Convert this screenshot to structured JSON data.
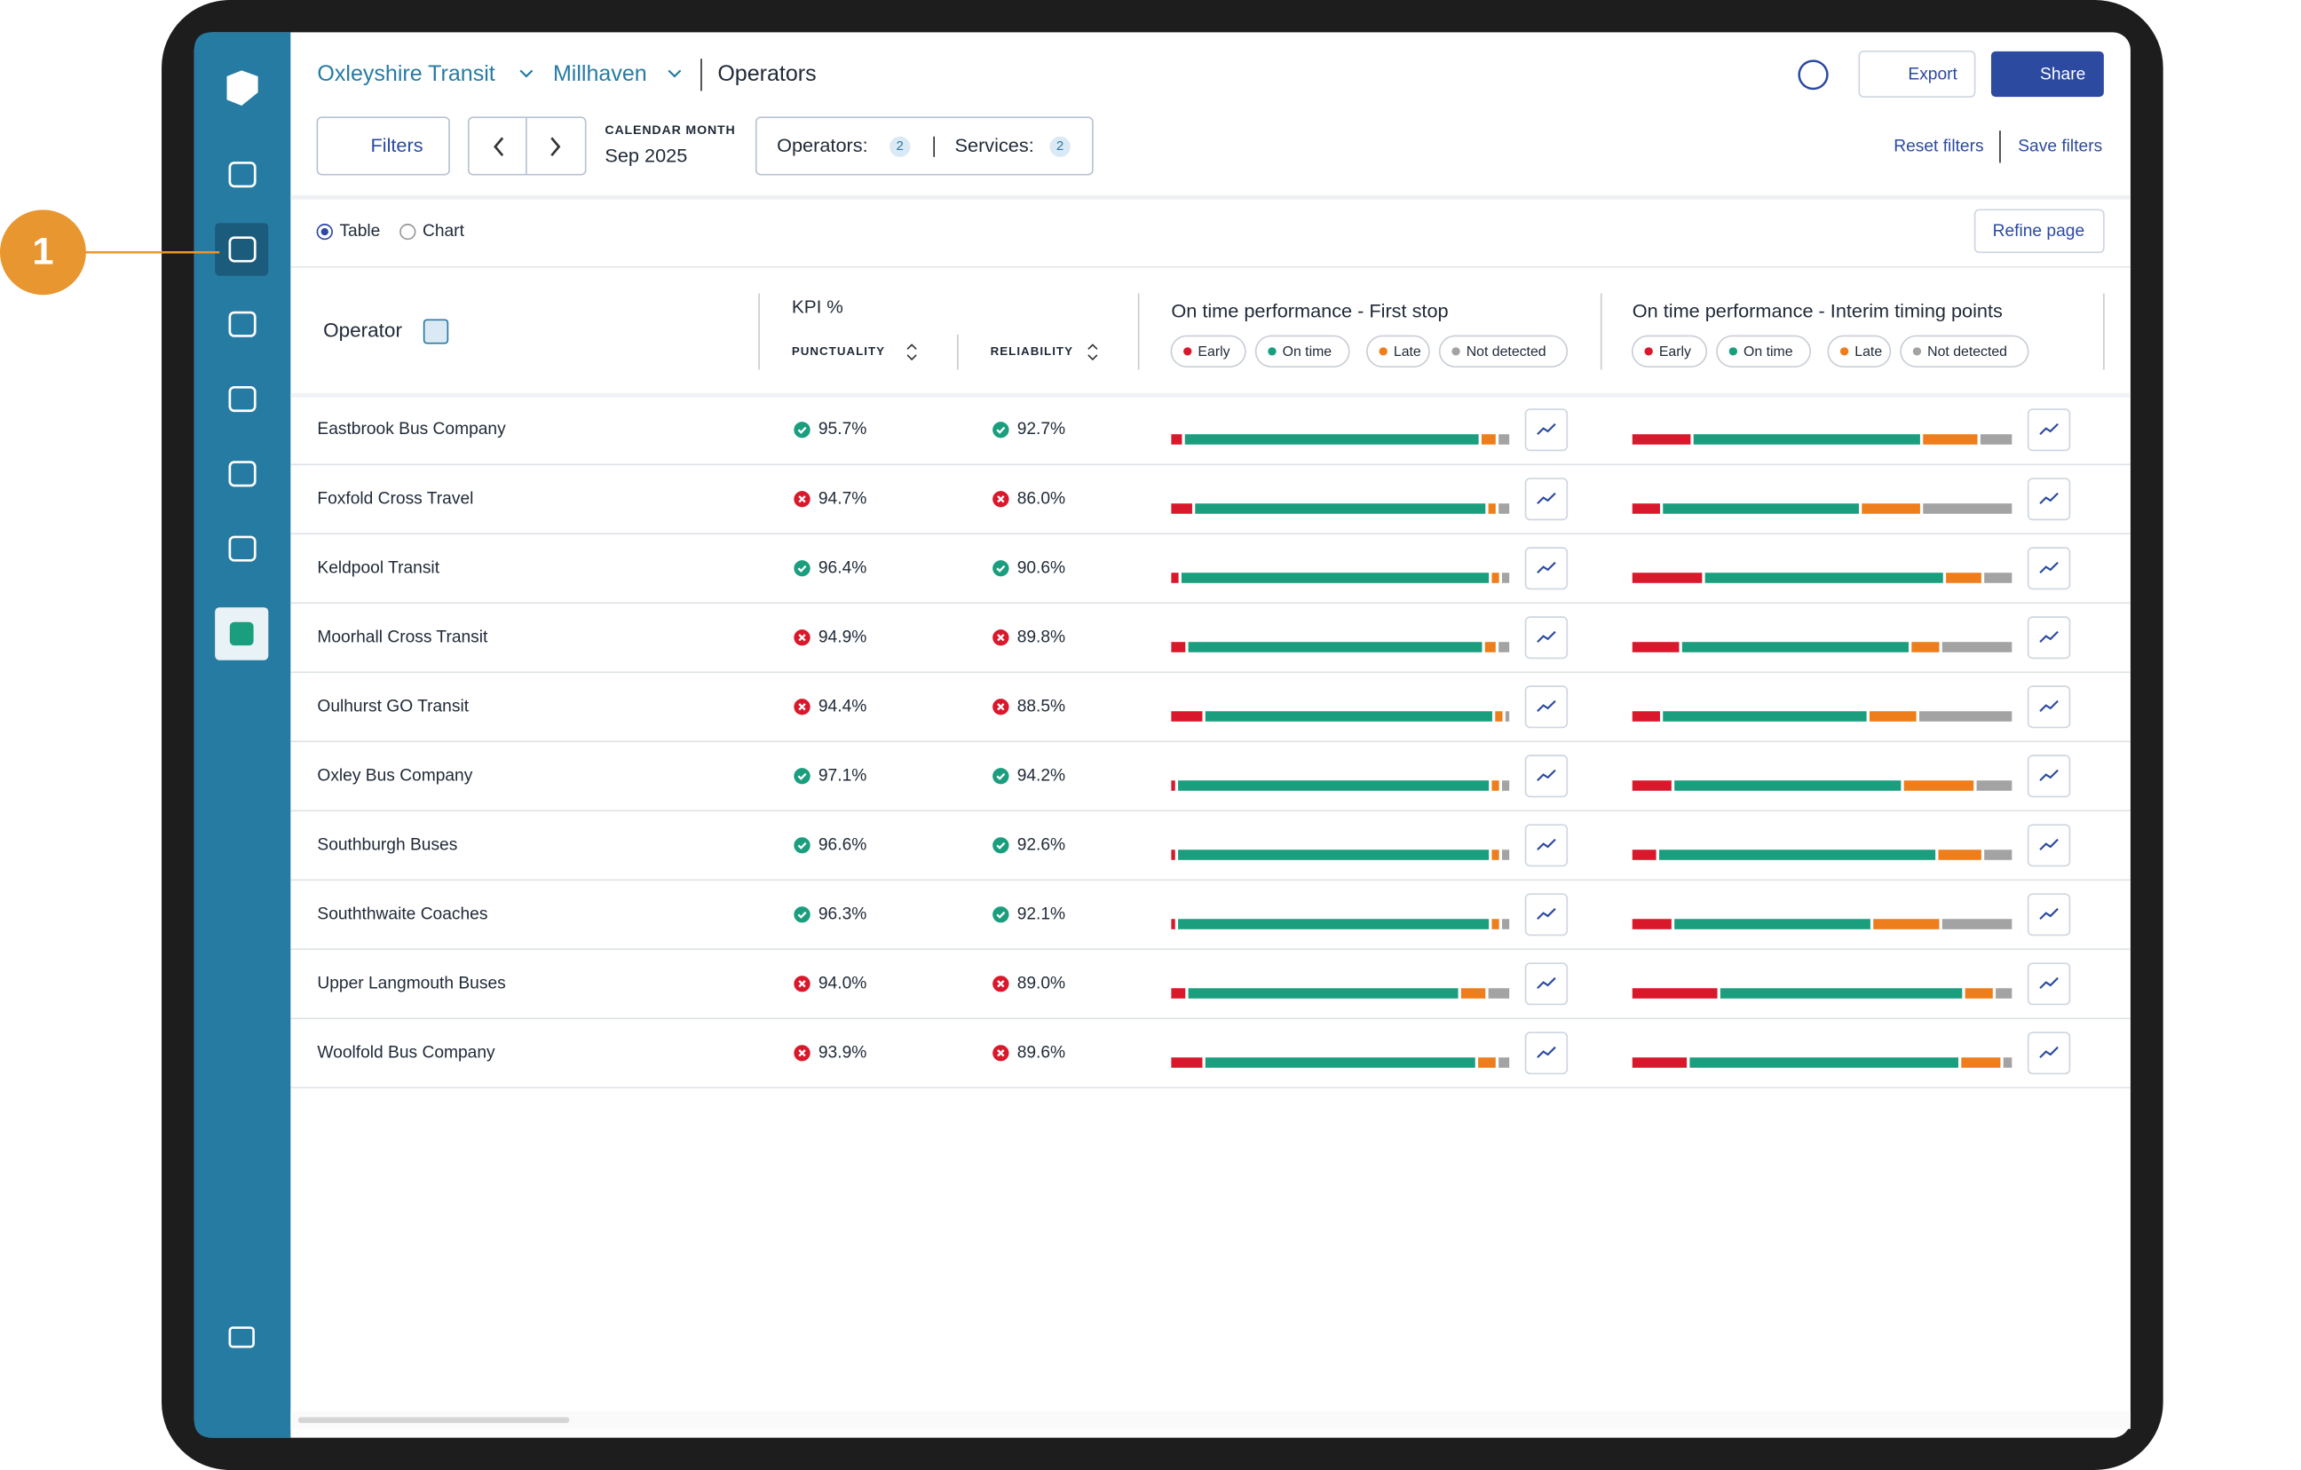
{
  "callout": "1",
  "breadcrumb": {
    "org": "Oxleyshire Transit",
    "area": "Millhaven",
    "page": "Operators"
  },
  "toolbar": {
    "export": "Export",
    "share": "Share",
    "filters": "Filters",
    "period_label": "CALENDAR MONTH",
    "period": "Sep 2025",
    "operators_label": "Operators:",
    "operators_count": "2",
    "services_label": "Services:",
    "services_count": "2",
    "reset": "Reset filters",
    "save": "Save filters"
  },
  "view": {
    "table": "Table",
    "chart": "Chart",
    "refine": "Refine page"
  },
  "table": {
    "headers": {
      "operator": "Operator",
      "kpi": "KPI %",
      "punctuality": "PUNCTUALITY",
      "reliability": "RELIABILITY",
      "first_stop": "On time performance - First stop",
      "interim": "On time performance - Interim timing points"
    },
    "legend": [
      {
        "name": "Early",
        "color": "#d9182b"
      },
      {
        "name": "On time",
        "color": "#1a9e7e"
      },
      {
        "name": "Late",
        "color": "#ee7d1b"
      },
      {
        "name": "Not detected",
        "color": "#a3a3a3"
      }
    ],
    "rows": [
      {
        "operator": "Eastbrook Bus Company",
        "punctuality": "95.7%",
        "punctuality_ok": true,
        "reliability": "92.7%",
        "reliability_ok": true,
        "first_stop": [
          4,
          87,
          5,
          4
        ],
        "interim": [
          16,
          60,
          15,
          9
        ]
      },
      {
        "operator": "Foxfold Cross Travel",
        "punctuality": "94.7%",
        "punctuality_ok": false,
        "reliability": "86.0%",
        "reliability_ok": false,
        "first_stop": [
          7,
          86,
          3,
          4
        ],
        "interim": [
          8,
          52,
          16,
          24
        ]
      },
      {
        "operator": "Keldpool Transit",
        "punctuality": "96.4%",
        "punctuality_ok": true,
        "reliability": "90.6%",
        "reliability_ok": true,
        "first_stop": [
          3,
          91,
          3,
          3
        ],
        "interim": [
          19,
          63,
          10,
          8
        ]
      },
      {
        "operator": "Moorhall Cross Transit",
        "punctuality": "94.9%",
        "punctuality_ok": false,
        "reliability": "89.8%",
        "reliability_ok": false,
        "first_stop": [
          5,
          87,
          4,
          4
        ],
        "interim": [
          13,
          60,
          8,
          19
        ]
      },
      {
        "operator": "Oulhurst GO Transit",
        "punctuality": "94.4%",
        "punctuality_ok": false,
        "reliability": "88.5%",
        "reliability_ok": false,
        "first_stop": [
          10,
          85,
          3,
          2
        ],
        "interim": [
          8,
          54,
          13,
          25
        ]
      },
      {
        "operator": "Oxley Bus Company",
        "punctuality": "97.1%",
        "punctuality_ok": true,
        "reliability": "94.2%",
        "reliability_ok": true,
        "first_stop": [
          2,
          92,
          3,
          3
        ],
        "interim": [
          11,
          60,
          19,
          10
        ]
      },
      {
        "operator": "Southburgh Buses",
        "punctuality": "96.6%",
        "punctuality_ok": true,
        "reliability": "92.6%",
        "reliability_ok": true,
        "first_stop": [
          2,
          92,
          3,
          3
        ],
        "interim": [
          7,
          73,
          12,
          8
        ]
      },
      {
        "operator": "Souththwaite Coaches",
        "punctuality": "96.3%",
        "punctuality_ok": true,
        "reliability": "92.1%",
        "reliability_ok": true,
        "first_stop": [
          2,
          92,
          3,
          3
        ],
        "interim": [
          11,
          52,
          18,
          19
        ]
      },
      {
        "operator": "Upper Langmouth Buses",
        "punctuality": "94.0%",
        "punctuality_ok": false,
        "reliability": "89.0%",
        "reliability_ok": false,
        "first_stop": [
          5,
          80,
          8,
          7
        ],
        "interim": [
          23,
          64,
          8,
          5
        ]
      },
      {
        "operator": "Woolfold Bus Company",
        "punctuality": "93.9%",
        "punctuality_ok": false,
        "reliability": "89.6%",
        "reliability_ok": false,
        "first_stop": [
          10,
          80,
          6,
          4
        ],
        "interim": [
          15,
          71,
          11,
          3
        ]
      }
    ]
  }
}
